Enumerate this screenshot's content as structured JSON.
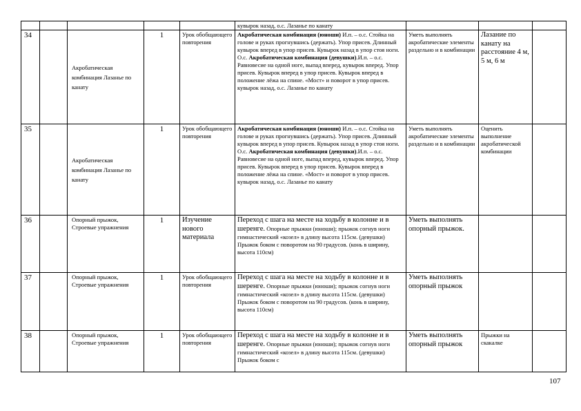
{
  "table": {
    "continuation": "кувырок назад, о.с. Лазанье по канату",
    "rows": [
      {
        "num": "34",
        "topic": "Акробатическая комбинация Лазанье по канату",
        "hours": "1",
        "type": "Урок обобщающего повторения",
        "content_b1": "Акробатическая комбинация (юноши)",
        "content_t1": " И.п. – о.с. Стойка на голове и руках прогнувшись (держать). Упор присев. Длинный кувырок вперед в упор присев. Кувырок назад в упор  стоя ноги. О.с. ",
        "content_b2": "Акробатическая комбинация (девушки)",
        "content_t2": ".И.п. – о.с. Равновесие на одной ноге, выпад вперед, кувырок вперед. Упор присев. Кувырок вперед в упор присев.  Кувырок вперед в положение лёжа на спине. «Мост» и поворот в упор присев. кувырок назад, о.с. Лазанье по канату",
        "skills": "Уметь выполнять акробатические элементы раздельно и в комбинации",
        "control": "Лазание по канату на расстояние 4 м, 5 м, 6 м",
        "notes": ""
      },
      {
        "num": "35",
        "topic": "Акробатическая комбинация Лазанье по канату",
        "hours": "1",
        "type": "Урок обобщающего повторения",
        "content_b1": "Акробатическая комбинация (юноши)",
        "content_t1": " И.п. – о.с. Стойка на голове и руках прогнувшись (держать). Упор присев. Длинный кувырок вперед в упор присев. Кувырок назад в упор  стоя ноги. О.с. ",
        "content_b2": "Акробатическая комбинация (девушки)",
        "content_t2": ".И.п. – о.с. Равновесие на одной ноге, выпад вперед, кувырок вперед. Упор присев. Кувырок вперед в упор присев.  Кувырок вперед в положение лёжа на спине. «Мост» и поворот в упор присев. кувырок назад, о.с. Лазанье по канату",
        "skills": "Уметь выполнять акробатические элементы раздельно и в комбинации",
        "control": "Оценить выполнение акробатической комбинации",
        "notes": ""
      },
      {
        "num": "36",
        "topic": "Опорный прыжок, Строевые упражнения",
        "hours": "1",
        "type": "Изучение нового материала",
        "content_head": "Переход с шага на месте на ходьбу в колонне и в шеренге.",
        "content_rest": " Опорные прыжки (юноши);  прыжок согнув ноги гимнастический «козел» в длину высота 115см. (девушки) Прыжок боком  с поворотом на 90 градусов. (конь в ширину, высота 110см)",
        "skills": "Уметь выполнять опорный прыжок.",
        "control": "",
        "notes": ""
      },
      {
        "num": "37",
        "topic": "Опорный прыжок, Строевые упражнения",
        "hours": "1",
        "type": "Урок обобщающего повторения",
        "content_head": "Переход с шага на месте на ходьбу в колонне и в шеренге.",
        "content_rest": " Опорные прыжки (юноши); прыжок согнув ноги гимнастический «козел» в длину высота 115см. (девушки) Прыжок боком  с поворотом на 90 градусов. (конь в ширину, высота 110см)",
        "skills": "Уметь выполнять опорный прыжок",
        "control": "",
        "notes": ""
      },
      {
        "num": "38",
        "topic": "Опорный прыжок, Строевые упражнения",
        "hours": "1",
        "type": "Урок обобщающего повторения",
        "content_head": "Переход с шага на месте на ходьбу в колонне и в шеренге.",
        "content_rest": " Опорные прыжки (юноши); прыжок согнув ноги гимнастический «козел» в длину высота 115см. (девушки) Прыжок боком  с",
        "skills": "Уметь выполнять опорный прыжок",
        "control": "Прыжки на скакалке",
        "notes": ""
      }
    ]
  },
  "page_number": "107"
}
